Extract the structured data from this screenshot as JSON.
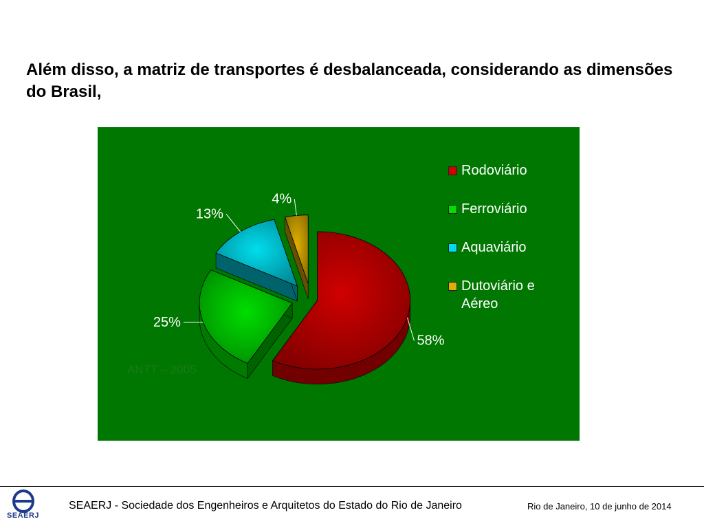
{
  "slide": {
    "title": "Além disso, a matriz de transportes é desbalanceada, considerando as dimensões do Brasil,"
  },
  "chart_data": {
    "type": "pie",
    "title": "",
    "categories": [
      "Rodoviário",
      "Ferroviário",
      "Aquaviário",
      "Dutoviário e Aéreo"
    ],
    "values": [
      58,
      25,
      13,
      4
    ],
    "labels": [
      "58%",
      "25%",
      "13%",
      "4%"
    ],
    "colors": [
      "#d00000",
      "#00dd00",
      "#00ddee",
      "#e0b000"
    ],
    "legend_placement": "right",
    "source_note": "ANTT – 2005"
  },
  "footer": {
    "organization": "SEAERJ - Sociedade dos Engenheiros e Arquitetos do Estado do Rio de Janeiro",
    "date": "Rio de Janeiro, 10 de junho de 2014",
    "logo_text": "SEAERJ"
  }
}
